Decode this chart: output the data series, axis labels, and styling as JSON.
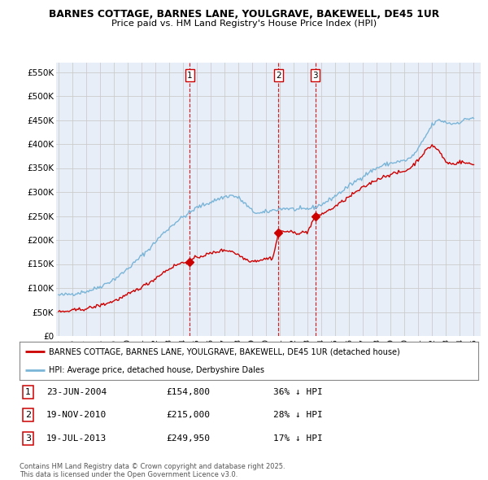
{
  "title_line1": "BARNES COTTAGE, BARNES LANE, YOULGRAVE, BAKEWELL, DE45 1UR",
  "title_line2": "Price paid vs. HM Land Registry's House Price Index (HPI)",
  "ylim": [
    0,
    570000
  ],
  "yticks": [
    0,
    50000,
    100000,
    150000,
    200000,
    250000,
    300000,
    350000,
    400000,
    450000,
    500000,
    550000
  ],
  "ytick_labels": [
    "£0",
    "£50K",
    "£100K",
    "£150K",
    "£200K",
    "£250K",
    "£300K",
    "£350K",
    "£400K",
    "£450K",
    "£500K",
    "£550K"
  ],
  "xlim_start": 1994.83,
  "xlim_end": 2025.5,
  "xticks": [
    1995,
    1996,
    1997,
    1998,
    1999,
    2000,
    2001,
    2002,
    2003,
    2004,
    2005,
    2006,
    2007,
    2008,
    2009,
    2010,
    2011,
    2012,
    2013,
    2014,
    2015,
    2016,
    2017,
    2018,
    2019,
    2020,
    2021,
    2022,
    2023,
    2024,
    2025
  ],
  "hpi_color": "#7ab5d8",
  "price_color": "#cc0000",
  "vline_color": "#cc0000",
  "grid_color": "#cccccc",
  "bg_color": "#e8eef8",
  "legend_label_red": "BARNES COTTAGE, BARNES LANE, YOULGRAVE, BAKEWELL, DE45 1UR (detached house)",
  "legend_label_blue": "HPI: Average price, detached house, Derbyshire Dales",
  "purchases": [
    {
      "date_year": 2004.48,
      "price": 154800,
      "label": "1"
    },
    {
      "date_year": 2010.89,
      "price": 215000,
      "label": "2"
    },
    {
      "date_year": 2013.55,
      "price": 249950,
      "label": "3"
    }
  ],
  "table_rows": [
    {
      "num": "1",
      "date": "23-JUN-2004",
      "price": "£154,800",
      "change": "36% ↓ HPI"
    },
    {
      "num": "2",
      "date": "19-NOV-2010",
      "price": "£215,000",
      "change": "28% ↓ HPI"
    },
    {
      "num": "3",
      "date": "19-JUL-2013",
      "price": "£249,950",
      "change": "17% ↓ HPI"
    }
  ],
  "footnote": "Contains HM Land Registry data © Crown copyright and database right 2025.\nThis data is licensed under the Open Government Licence v3.0.",
  "hpi_anchors_x": [
    1995.0,
    1995.5,
    1996.0,
    1996.5,
    1997.0,
    1997.5,
    1998.0,
    1998.5,
    1999.0,
    1999.5,
    2000.0,
    2000.5,
    2001.0,
    2001.5,
    2002.0,
    2002.5,
    2003.0,
    2003.5,
    2004.0,
    2004.5,
    2005.0,
    2005.5,
    2006.0,
    2006.5,
    2007.0,
    2007.5,
    2008.0,
    2008.5,
    2009.0,
    2009.5,
    2010.0,
    2010.5,
    2011.0,
    2011.5,
    2012.0,
    2012.5,
    2013.0,
    2013.5,
    2014.0,
    2014.5,
    2015.0,
    2015.5,
    2016.0,
    2016.5,
    2017.0,
    2017.5,
    2018.0,
    2018.5,
    2019.0,
    2019.5,
    2020.0,
    2020.5,
    2021.0,
    2021.5,
    2022.0,
    2022.5,
    2023.0,
    2023.5,
    2024.0,
    2024.5,
    2025.0
  ],
  "hpi_anchors_y": [
    85000,
    86000,
    88000,
    90000,
    93000,
    97000,
    103000,
    110000,
    118000,
    128000,
    140000,
    153000,
    167000,
    180000,
    196000,
    212000,
    225000,
    238000,
    248000,
    257000,
    268000,
    273000,
    279000,
    285000,
    290000,
    293000,
    288000,
    275000,
    260000,
    255000,
    258000,
    262000,
    265000,
    266000,
    264000,
    263000,
    265000,
    268000,
    274000,
    282000,
    292000,
    302000,
    313000,
    323000,
    333000,
    342000,
    350000,
    356000,
    360000,
    363000,
    365000,
    372000,
    390000,
    415000,
    440000,
    450000,
    445000,
    442000,
    446000,
    452000,
    455000
  ],
  "red_anchors_x": [
    1995.0,
    1995.5,
    1996.0,
    1996.5,
    1997.0,
    1997.5,
    1998.0,
    1998.5,
    1999.0,
    1999.5,
    2000.0,
    2000.5,
    2001.0,
    2001.5,
    2002.0,
    2002.5,
    2003.0,
    2003.5,
    2004.0,
    2004.48,
    2004.5,
    2005.0,
    2005.5,
    2006.0,
    2006.5,
    2007.0,
    2007.5,
    2008.0,
    2008.5,
    2009.0,
    2009.5,
    2010.0,
    2010.5,
    2010.89,
    2011.0,
    2011.5,
    2012.0,
    2012.5,
    2013.0,
    2013.55,
    2014.0,
    2014.5,
    2015.0,
    2015.5,
    2016.0,
    2016.5,
    2017.0,
    2017.5,
    2018.0,
    2018.5,
    2019.0,
    2019.5,
    2020.0,
    2020.5,
    2021.0,
    2021.5,
    2022.0,
    2022.5,
    2023.0,
    2023.5,
    2024.0,
    2024.5,
    2025.0
  ],
  "red_anchors_y": [
    50000,
    51000,
    53000,
    55000,
    57000,
    60000,
    64000,
    68000,
    73000,
    79000,
    86000,
    94000,
    102000,
    110000,
    120000,
    131000,
    140000,
    148000,
    153000,
    154800,
    157000,
    164000,
    168000,
    172000,
    176000,
    179000,
    177000,
    169000,
    160000,
    156000,
    158000,
    161000,
    163000,
    215000,
    218000,
    218000,
    215000,
    215000,
    217000,
    249950,
    254000,
    261000,
    270000,
    280000,
    290000,
    300000,
    309000,
    318000,
    326000,
    332000,
    337000,
    340000,
    343000,
    352000,
    368000,
    385000,
    398000,
    385000,
    362000,
    358000,
    363000,
    360000,
    357000
  ]
}
